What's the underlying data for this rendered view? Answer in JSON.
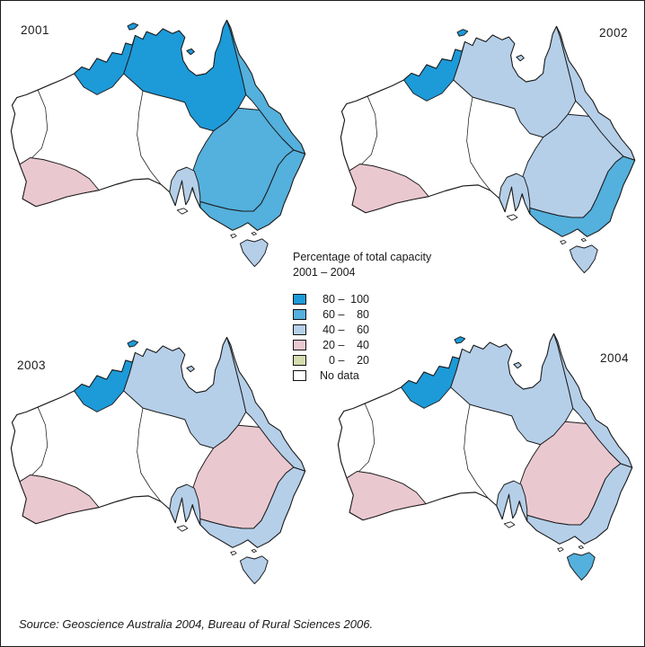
{
  "figure": {
    "background": "#ffffff",
    "border_color": "#1b1b1b",
    "outline_color": "#1a1a1a"
  },
  "legend": {
    "title_line1": "Percentage of total capacity",
    "title_line2": "2001 – 2004",
    "classes": [
      {
        "id": "c80",
        "from": "80",
        "to": "100",
        "label": "80 – 100",
        "color": "#1d9ad8"
      },
      {
        "id": "c60",
        "from": "60",
        "to": "80",
        "label": "60 –  80",
        "color": "#54b0dc"
      },
      {
        "id": "c40",
        "from": "40",
        "to": "60",
        "label": "40 –  60",
        "color": "#b5cfe9"
      },
      {
        "id": "c20",
        "from": "20",
        "to": "40",
        "label": "20 –  40",
        "color": "#eac8d0"
      },
      {
        "id": "c0",
        "from": "0",
        "to": "20",
        "label": "0 –  20",
        "color": "#d6dbad"
      },
      {
        "id": "nodata",
        "from": "",
        "to": "",
        "label": "No data",
        "color": "#ffffff"
      }
    ]
  },
  "maps": [
    {
      "year": "2001",
      "regions": {
        "timor": "c80",
        "carpentaria": "c80",
        "northeast_coast": "c60",
        "murray_darling": "c60",
        "southeast_coast": "c60",
        "sa_gulf": "c40",
        "southwest": "c20",
        "tasmania": "c40",
        "interior": "nodata"
      }
    },
    {
      "year": "2002",
      "regions": {
        "timor": "c80",
        "carpentaria": "c40",
        "northeast_coast": "c40",
        "murray_darling": "c40",
        "southeast_coast": "c60",
        "sa_gulf": "c40",
        "southwest": "c20",
        "tasmania": "c40",
        "interior": "nodata"
      }
    },
    {
      "year": "2003",
      "regions": {
        "timor": "c80",
        "carpentaria": "c40",
        "northeast_coast": "c40",
        "murray_darling": "c20",
        "southeast_coast": "c40",
        "sa_gulf": "c40",
        "southwest": "c20",
        "tasmania": "c40",
        "interior": "nodata"
      }
    },
    {
      "year": "2004",
      "regions": {
        "timor": "c80",
        "carpentaria": "c40",
        "northeast_coast": "c40",
        "murray_darling": "c20",
        "southeast_coast": "c40",
        "sa_gulf": "c40",
        "southwest": "c20",
        "tasmania": "c60",
        "interior": "nodata"
      }
    }
  ],
  "source": "Source: Geoscience Australia 2004, Bureau of Rural Sciences 2006."
}
